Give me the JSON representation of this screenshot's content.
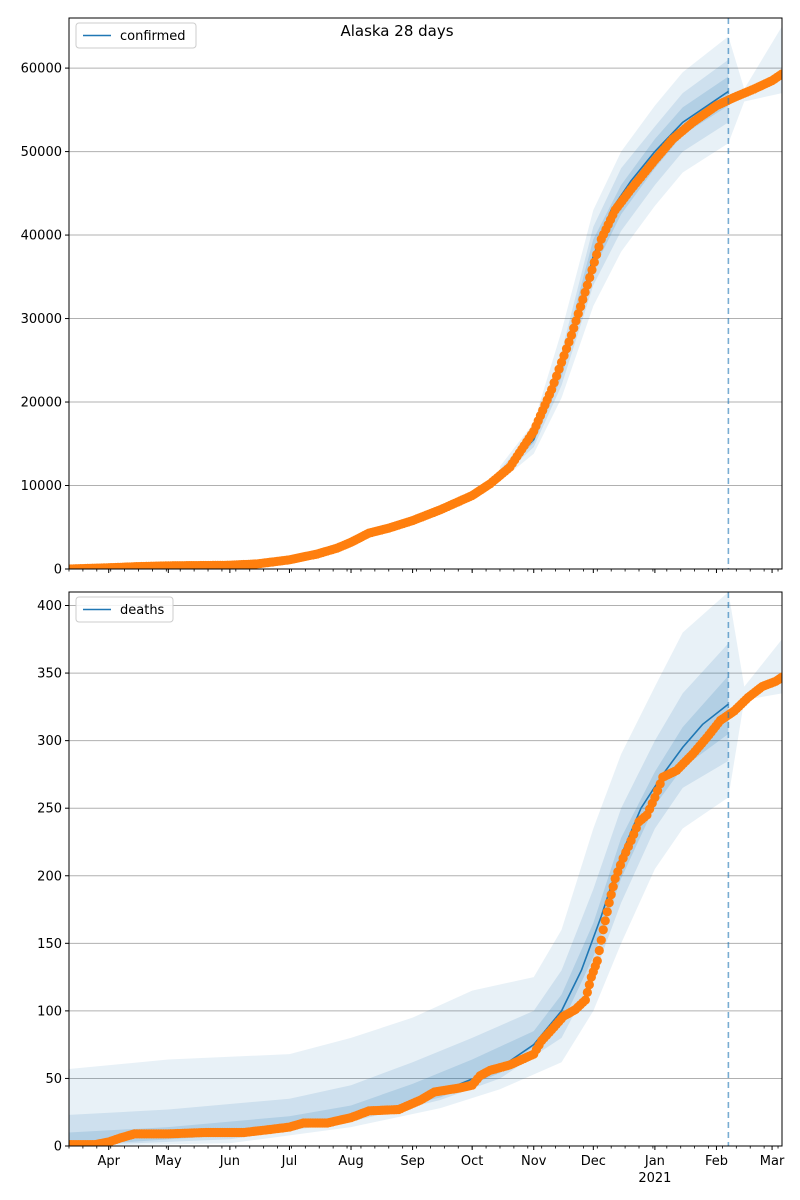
{
  "title": "Alaska 28 days",
  "colors": {
    "line": "#1f77b4",
    "band": "#1f77b4",
    "points": "#ff7f0e",
    "grid": "#b0b0b0",
    "forecast_line": "#1f77b4"
  },
  "chart_data": [
    {
      "type": "line",
      "legend": "confirmed",
      "legend_position": "upper-left",
      "grid": "horizontal",
      "ylim": [
        0,
        66000
      ],
      "yticks": [
        0,
        10000,
        20000,
        30000,
        40000,
        50000,
        60000
      ],
      "ytick_labels": [
        "0",
        "10000",
        "20000",
        "30000",
        "40000",
        "50000",
        "60000"
      ],
      "forecast_start": "2021-02-07",
      "model_curve": [
        [
          "2020-03-12",
          0
        ],
        [
          "2020-05-15",
          420
        ],
        [
          "2020-06-15",
          620
        ],
        [
          "2020-07-01",
          1100
        ],
        [
          "2020-07-15",
          1800
        ],
        [
          "2020-08-01",
          3300
        ],
        [
          "2020-08-15",
          4700
        ],
        [
          "2020-09-01",
          6000
        ],
        [
          "2020-09-15",
          7200
        ],
        [
          "2020-10-01",
          8900
        ],
        [
          "2020-10-15",
          11400
        ],
        [
          "2020-11-01",
          15500
        ],
        [
          "2020-11-15",
          24000
        ],
        [
          "2020-11-25",
          32000
        ],
        [
          "2020-12-01",
          37500
        ],
        [
          "2020-12-10",
          43000
        ],
        [
          "2020-12-20",
          46500
        ],
        [
          "2021-01-01",
          50000
        ],
        [
          "2021-01-15",
          53500
        ],
        [
          "2021-02-07",
          57200
        ]
      ],
      "bands": [
        {
          "level": "outer",
          "lower": [
            [
              "2020-10-15",
              10500
            ],
            [
              "2020-11-01",
              13800
            ],
            [
              "2020-11-15",
              20500
            ],
            [
              "2020-12-01",
              31500
            ],
            [
              "2020-12-15",
              38000
            ],
            [
              "2021-01-01",
              43500
            ],
            [
              "2021-01-15",
              47500
            ],
            [
              "2021-02-07",
              51000
            ],
            [
              "2021-02-15",
              56000
            ],
            [
              "2021-03-06",
              57000
            ]
          ],
          "upper": [
            [
              "2020-10-15",
              12300
            ],
            [
              "2020-11-01",
              17500
            ],
            [
              "2020-11-15",
              28500
            ],
            [
              "2020-12-01",
              43000
            ],
            [
              "2020-12-15",
              50000
            ],
            [
              "2021-01-01",
              55500
            ],
            [
              "2021-01-15",
              59500
            ],
            [
              "2021-02-07",
              63800
            ],
            [
              "2021-02-15",
              57500
            ],
            [
              "2021-03-06",
              65000
            ]
          ]
        },
        {
          "level": "middle",
          "lower": [
            [
              "2020-10-15",
              10900
            ],
            [
              "2020-11-01",
              14600
            ],
            [
              "2020-11-15",
              22000
            ],
            [
              "2020-12-01",
              34000
            ],
            [
              "2020-12-15",
              40500
            ],
            [
              "2021-01-01",
              46000
            ],
            [
              "2021-01-15",
              50000
            ],
            [
              "2021-02-07",
              53500
            ]
          ],
          "upper": [
            [
              "2020-10-15",
              11900
            ],
            [
              "2020-11-01",
              16500
            ],
            [
              "2020-11-15",
              26000
            ],
            [
              "2020-12-01",
              41000
            ],
            [
              "2020-12-15",
              48000
            ],
            [
              "2021-01-01",
              53000
            ],
            [
              "2021-01-15",
              57000
            ],
            [
              "2021-02-07",
              61000
            ]
          ]
        },
        {
          "level": "inner",
          "lower": [
            [
              "2020-10-15",
              11200
            ],
            [
              "2020-11-01",
              15100
            ],
            [
              "2020-11-15",
              23000
            ],
            [
              "2020-12-01",
              35800
            ],
            [
              "2020-12-15",
              42500
            ],
            [
              "2021-01-01",
              48000
            ],
            [
              "2021-01-15",
              52000
            ],
            [
              "2021-02-07",
              55500
            ]
          ],
          "upper": [
            [
              "2020-10-15",
              11600
            ],
            [
              "2020-11-01",
              15900
            ],
            [
              "2020-11-15",
              25000
            ],
            [
              "2020-12-01",
              39500
            ],
            [
              "2020-12-15",
              46000
            ],
            [
              "2021-01-01",
              51500
            ],
            [
              "2021-01-15",
              55300
            ],
            [
              "2021-02-07",
              59000
            ]
          ]
        }
      ],
      "observed": [
        [
          "2020-03-12",
          0
        ],
        [
          "2020-04-01",
          150
        ],
        [
          "2020-04-15",
          280
        ],
        [
          "2020-05-01",
          380
        ],
        [
          "2020-05-15",
          410
        ],
        [
          "2020-06-01",
          450
        ],
        [
          "2020-06-15",
          620
        ],
        [
          "2020-07-01",
          1100
        ],
        [
          "2020-07-15",
          1800
        ],
        [
          "2020-07-25",
          2500
        ],
        [
          "2020-08-01",
          3200
        ],
        [
          "2020-08-10",
          4300
        ],
        [
          "2020-08-20",
          4900
        ],
        [
          "2020-09-01",
          5800
        ],
        [
          "2020-09-15",
          7100
        ],
        [
          "2020-10-01",
          8800
        ],
        [
          "2020-10-10",
          10200
        ],
        [
          "2020-10-20",
          12200
        ],
        [
          "2020-11-01",
          16500
        ],
        [
          "2020-11-10",
          21500
        ],
        [
          "2020-11-20",
          28000
        ],
        [
          "2020-11-28",
          34000
        ],
        [
          "2020-12-05",
          39500
        ],
        [
          "2020-12-12",
          43000
        ],
        [
          "2020-12-20",
          45500
        ],
        [
          "2021-01-01",
          49000
        ],
        [
          "2021-01-10",
          51500
        ],
        [
          "2021-01-20",
          53500
        ],
        [
          "2021-02-01",
          55500
        ],
        [
          "2021-02-10",
          56500
        ],
        [
          "2021-02-20",
          57500
        ],
        [
          "2021-03-01",
          58500
        ],
        [
          "2021-03-06",
          59300
        ]
      ]
    },
    {
      "type": "line",
      "legend": "deaths",
      "legend_position": "upper-left",
      "grid": "horizontal",
      "ylim": [
        0,
        410
      ],
      "yticks": [
        0,
        50,
        100,
        150,
        200,
        250,
        300,
        350,
        400
      ],
      "ytick_labels": [
        "0",
        "50",
        "100",
        "150",
        "200",
        "250",
        "300",
        "350",
        "400"
      ],
      "forecast_start": "2021-02-07",
      "model_curve": [
        [
          "2020-03-12",
          0
        ],
        [
          "2020-04-15",
          7
        ],
        [
          "2020-05-15",
          9
        ],
        [
          "2020-06-15",
          11
        ],
        [
          "2020-07-15",
          16
        ],
        [
          "2020-08-15",
          25
        ],
        [
          "2020-09-15",
          40
        ],
        [
          "2020-10-15",
          58
        ],
        [
          "2020-11-01",
          75
        ],
        [
          "2020-11-15",
          100
        ],
        [
          "2020-11-25",
          130
        ],
        [
          "2020-12-05",
          170
        ],
        [
          "2020-12-15",
          215
        ],
        [
          "2020-12-25",
          250
        ],
        [
          "2021-01-05",
          275
        ],
        [
          "2021-01-15",
          295
        ],
        [
          "2021-01-25",
          312
        ],
        [
          "2021-02-07",
          327
        ]
      ],
      "bands": [
        {
          "level": "outer",
          "lower": [
            [
              "2020-03-12",
              0
            ],
            [
              "2020-06-01",
              2
            ],
            [
              "2020-08-01",
              14
            ],
            [
              "2020-09-15",
              28
            ],
            [
              "2020-10-15",
              42
            ],
            [
              "2020-11-15",
              62
            ],
            [
              "2020-12-01",
              100
            ],
            [
              "2020-12-15",
              150
            ],
            [
              "2021-01-01",
              205
            ],
            [
              "2021-01-15",
              235
            ],
            [
              "2021-02-07",
              258
            ],
            [
              "2021-02-15",
              330
            ],
            [
              "2021-03-06",
              335
            ]
          ],
          "upper": [
            [
              "2020-03-12",
              57
            ],
            [
              "2020-05-01",
              64
            ],
            [
              "2020-07-01",
              68
            ],
            [
              "2020-08-01",
              80
            ],
            [
              "2020-09-01",
              95
            ],
            [
              "2020-10-01",
              115
            ],
            [
              "2020-11-01",
              125
            ],
            [
              "2020-11-15",
              160
            ],
            [
              "2020-12-01",
              235
            ],
            [
              "2020-12-15",
              290
            ],
            [
              "2021-01-01",
              340
            ],
            [
              "2021-01-15",
              380
            ],
            [
              "2021-02-07",
              410
            ],
            [
              "2021-02-15",
              340
            ],
            [
              "2021-03-06",
              375
            ]
          ]
        },
        {
          "level": "middle",
          "lower": [
            [
              "2020-03-12",
              0
            ],
            [
              "2020-06-01",
              5
            ],
            [
              "2020-08-01",
              18
            ],
            [
              "2020-09-15",
              34
            ],
            [
              "2020-10-15",
              50
            ],
            [
              "2020-11-15",
              80
            ],
            [
              "2020-12-01",
              125
            ],
            [
              "2020-12-15",
              180
            ],
            [
              "2021-01-01",
              235
            ],
            [
              "2021-01-15",
              265
            ],
            [
              "2021-02-07",
              285
            ]
          ],
          "upper": [
            [
              "2020-03-12",
              23
            ],
            [
              "2020-05-01",
              27
            ],
            [
              "2020-07-01",
              35
            ],
            [
              "2020-08-01",
              45
            ],
            [
              "2020-09-01",
              62
            ],
            [
              "2020-10-01",
              80
            ],
            [
              "2020-11-01",
              100
            ],
            [
              "2020-11-15",
              130
            ],
            [
              "2020-12-01",
              190
            ],
            [
              "2020-12-15",
              250
            ],
            [
              "2021-01-01",
              300
            ],
            [
              "2021-01-15",
              335
            ],
            [
              "2021-02-07",
              372
            ]
          ]
        },
        {
          "level": "inner",
          "lower": [
            [
              "2020-03-12",
              0
            ],
            [
              "2020-06-01",
              8
            ],
            [
              "2020-08-01",
              20
            ],
            [
              "2020-09-15",
              36
            ],
            [
              "2020-10-15",
              54
            ],
            [
              "2020-11-15",
              90
            ],
            [
              "2020-12-01",
              140
            ],
            [
              "2020-12-15",
              198
            ],
            [
              "2021-01-01",
              252
            ],
            [
              "2021-01-15",
              280
            ],
            [
              "2021-02-07",
              305
            ]
          ],
          "upper": [
            [
              "2020-03-12",
              10
            ],
            [
              "2020-05-01",
              14
            ],
            [
              "2020-07-01",
              22
            ],
            [
              "2020-08-01",
              30
            ],
            [
              "2020-09-01",
              46
            ],
            [
              "2020-10-01",
              64
            ],
            [
              "2020-11-01",
              85
            ],
            [
              "2020-11-15",
              112
            ],
            [
              "2020-12-01",
              165
            ],
            [
              "2020-12-15",
              228
            ],
            [
              "2021-01-01",
              277
            ],
            [
              "2021-01-15",
              310
            ],
            [
              "2021-02-07",
              348
            ]
          ]
        }
      ],
      "observed": [
        [
          "2020-03-12",
          1
        ],
        [
          "2020-03-25",
          1
        ],
        [
          "2020-04-01",
          3
        ],
        [
          "2020-04-07",
          6
        ],
        [
          "2020-04-14",
          9
        ],
        [
          "2020-05-01",
          9
        ],
        [
          "2020-05-20",
          10
        ],
        [
          "2020-06-08",
          10
        ],
        [
          "2020-06-20",
          12
        ],
        [
          "2020-07-01",
          14
        ],
        [
          "2020-07-08",
          17
        ],
        [
          "2020-07-20",
          17
        ],
        [
          "2020-08-01",
          21
        ],
        [
          "2020-08-10",
          26
        ],
        [
          "2020-08-25",
          27
        ],
        [
          "2020-09-05",
          34
        ],
        [
          "2020-09-12",
          40
        ],
        [
          "2020-09-25",
          43
        ],
        [
          "2020-10-01",
          45
        ],
        [
          "2020-10-05",
          52
        ],
        [
          "2020-10-10",
          56
        ],
        [
          "2020-10-20",
          60
        ],
        [
          "2020-10-26",
          64
        ],
        [
          "2020-11-01",
          68
        ],
        [
          "2020-11-05",
          78
        ],
        [
          "2020-11-10",
          86
        ],
        [
          "2020-11-16",
          96
        ],
        [
          "2020-11-22",
          101
        ],
        [
          "2020-11-27",
          108
        ],
        [
          "2020-11-30",
          125
        ],
        [
          "2020-12-03",
          137
        ],
        [
          "2020-12-06",
          160
        ],
        [
          "2020-12-09",
          180
        ],
        [
          "2020-12-12",
          198
        ],
        [
          "2020-12-16",
          213
        ],
        [
          "2020-12-20",
          226
        ],
        [
          "2020-12-24",
          240
        ],
        [
          "2020-12-28",
          245
        ],
        [
          "2021-01-01",
          258
        ],
        [
          "2021-01-05",
          273
        ],
        [
          "2021-01-12",
          278
        ],
        [
          "2021-01-20",
          290
        ],
        [
          "2021-01-27",
          302
        ],
        [
          "2021-02-03",
          315
        ],
        [
          "2021-02-10",
          322
        ],
        [
          "2021-02-17",
          332
        ],
        [
          "2021-02-24",
          340
        ],
        [
          "2021-03-03",
          344
        ],
        [
          "2021-03-06",
          347
        ]
      ]
    }
  ],
  "x_axis": {
    "range": [
      "2020-03-12",
      "2021-03-06"
    ],
    "months": [
      {
        "date": "2020-04-01",
        "label": "Apr"
      },
      {
        "date": "2020-05-01",
        "label": "May"
      },
      {
        "date": "2020-06-01",
        "label": "Jun"
      },
      {
        "date": "2020-07-01",
        "label": "Jul"
      },
      {
        "date": "2020-08-01",
        "label": "Aug"
      },
      {
        "date": "2020-09-01",
        "label": "Sep"
      },
      {
        "date": "2020-10-01",
        "label": "Oct"
      },
      {
        "date": "2020-11-01",
        "label": "Nov"
      },
      {
        "date": "2020-12-01",
        "label": "Dec"
      },
      {
        "date": "2021-01-01",
        "label": "Jan"
      },
      {
        "date": "2021-02-01",
        "label": "Feb"
      },
      {
        "date": "2021-03-01",
        "label": "Mar"
      }
    ],
    "year_label": "2021",
    "year_label_under": "2021-01-01"
  }
}
